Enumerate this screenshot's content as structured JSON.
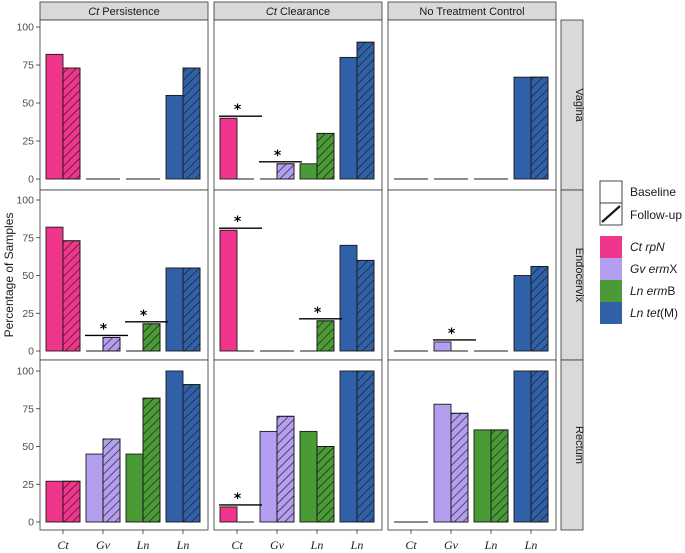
{
  "chart_data": {
    "type": "bar",
    "ylabel": "Percentage of Samples",
    "ylim": [
      0,
      100
    ],
    "yticks": [
      0,
      25,
      50,
      75,
      100
    ],
    "columns": [
      {
        "id": "persist",
        "prefix": "Ct",
        "suffix": " Persistence"
      },
      {
        "id": "clear",
        "prefix": "Ct",
        "suffix": " Clearance"
      },
      {
        "id": "ntc",
        "prefix": "",
        "suffix": "No Treatment Control"
      }
    ],
    "rows": [
      "Vagina",
      "Endocervix",
      "Rectum"
    ],
    "categories": [
      "Ct",
      "Gv",
      "Ln",
      "Ln"
    ],
    "targets": [
      {
        "label": "Ct rpN",
        "color": "#f0368c"
      },
      {
        "label": "Gv ermX",
        "color": "#b39ef0"
      },
      {
        "label": "Ln ermB",
        "color": "#4a9a36"
      },
      {
        "label": "Ln tet(M)",
        "color": "#3061a8"
      }
    ],
    "timepoints": [
      "Baseline",
      "Follow-up"
    ],
    "values": {
      "persist": {
        "Vagina": [
          [
            82,
            73
          ],
          [
            0,
            0
          ],
          [
            0,
            0
          ],
          [
            55,
            73
          ]
        ],
        "Endocervix": [
          [
            82,
            73
          ],
          [
            0,
            9
          ],
          [
            0,
            18
          ],
          [
            55,
            55
          ]
        ],
        "Rectum": [
          [
            27,
            27
          ],
          [
            45,
            55
          ],
          [
            45,
            82
          ],
          [
            100,
            91
          ]
        ]
      },
      "clear": {
        "Vagina": [
          [
            40,
            0
          ],
          [
            0,
            10
          ],
          [
            10,
            30
          ],
          [
            80,
            90
          ]
        ],
        "Endocervix": [
          [
            80,
            0
          ],
          [
            0,
            0
          ],
          [
            0,
            20
          ],
          [
            70,
            60
          ]
        ],
        "Rectum": [
          [
            10,
            0
          ],
          [
            60,
            70
          ],
          [
            60,
            50
          ],
          [
            100,
            100
          ]
        ]
      },
      "ntc": {
        "Vagina": [
          [
            0,
            0
          ],
          [
            0,
            0
          ],
          [
            0,
            0
          ],
          [
            67,
            67
          ]
        ],
        "Endocervix": [
          [
            0,
            0
          ],
          [
            6,
            0
          ],
          [
            0,
            0
          ],
          [
            50,
            56
          ]
        ],
        "Rectum": [
          [
            0,
            0
          ],
          [
            78,
            72
          ],
          [
            61,
            61
          ],
          [
            100,
            100
          ]
        ]
      }
    },
    "significance": [
      {
        "col": "clear",
        "row": "Vagina",
        "group": 0,
        "marker": "*"
      },
      {
        "col": "clear",
        "row": "Vagina",
        "group": 1,
        "marker": "*"
      },
      {
        "col": "persist",
        "row": "Endocervix",
        "group": 1,
        "marker": "*"
      },
      {
        "col": "persist",
        "row": "Endocervix",
        "group": 2,
        "marker": "*"
      },
      {
        "col": "clear",
        "row": "Endocervix",
        "group": 0,
        "marker": "*"
      },
      {
        "col": "clear",
        "row": "Endocervix",
        "group": 2,
        "marker": "*"
      },
      {
        "col": "ntc",
        "row": "Endocervix",
        "group": 1,
        "marker": "*"
      },
      {
        "col": "clear",
        "row": "Rectum",
        "group": 0,
        "marker": "*"
      }
    ],
    "legend_position": "right"
  }
}
